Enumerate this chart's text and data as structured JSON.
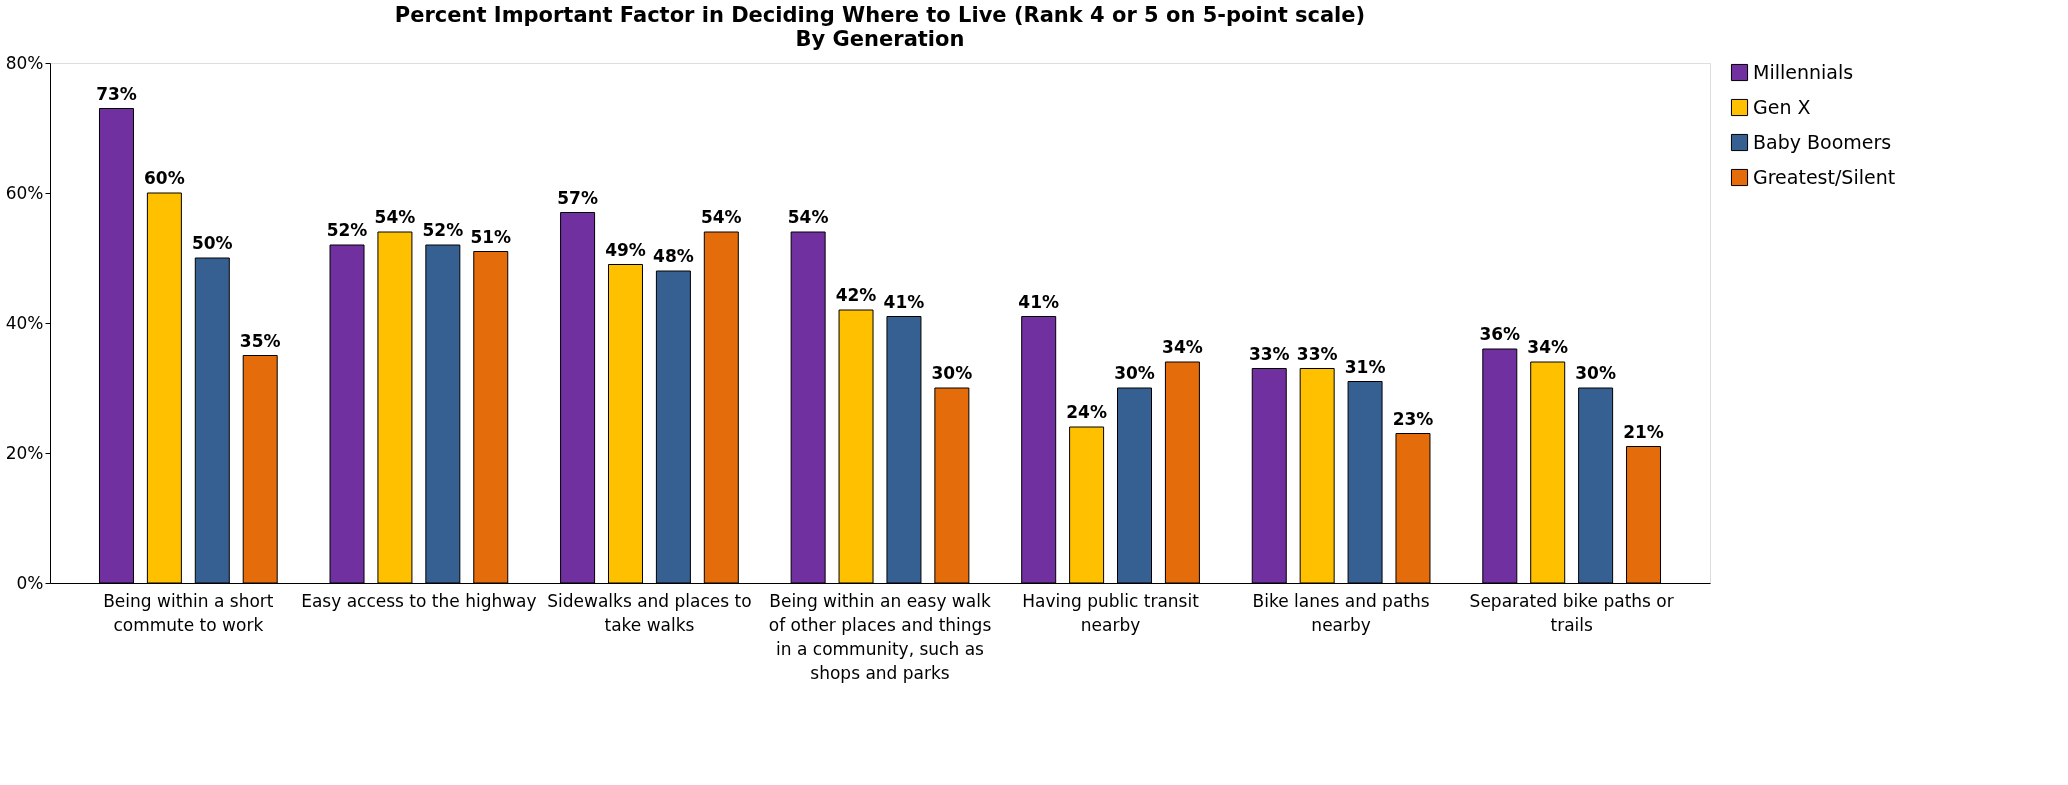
{
  "chart_data": {
    "type": "bar",
    "title": "Percent Important Factor in Deciding Where to Live (Rank 4 or 5 on 5-point scale)",
    "subtitle": "By Generation",
    "categories": [
      "Being within a short commute to work",
      "Easy access to the highway",
      "Sidewalks and places to take walks",
      "Being within an easy walk of other places and things in a community, such as shops and parks",
      "Having public transit nearby",
      "Bike lanes and paths nearby",
      "Separated bike paths or trails"
    ],
    "series": [
      {
        "name": "Millennials",
        "color": "#7030a0",
        "values": [
          73,
          52,
          57,
          54,
          41,
          33,
          36
        ],
        "value_labels": [
          "73%",
          "52%",
          "57%",
          "54%",
          "41%",
          "33%",
          "36%"
        ]
      },
      {
        "name": "Gen X",
        "color": "#ffc000",
        "values": [
          60,
          54,
          49,
          42,
          24,
          33,
          34
        ],
        "value_labels": [
          "60%",
          "54%",
          "49%",
          "42%",
          "24%",
          "33%",
          "34%"
        ]
      },
      {
        "name": "Baby Boomers",
        "color": "#376092",
        "values": [
          50,
          52,
          48,
          41,
          30,
          31,
          30
        ],
        "value_labels": [
          "50%",
          "52%",
          "48%",
          "41%",
          "30%",
          "31%",
          "30%"
        ]
      },
      {
        "name": "Greatest/Silent",
        "color": "#e46c0a",
        "values": [
          35,
          51,
          54,
          30,
          34,
          23,
          21
        ],
        "value_labels": [
          "35%",
          "51%",
          "54%",
          "30%",
          "34%",
          "23%",
          "21%"
        ]
      }
    ],
    "ylim": [
      0,
      80
    ],
    "yticks": [
      {
        "value": 0,
        "label": "0%"
      },
      {
        "value": 20,
        "label": "20%"
      },
      {
        "value": 40,
        "label": "40%"
      },
      {
        "value": 60,
        "label": "60%"
      },
      {
        "value": 80,
        "label": "80%"
      }
    ],
    "grid": false,
    "legend": "top right"
  }
}
